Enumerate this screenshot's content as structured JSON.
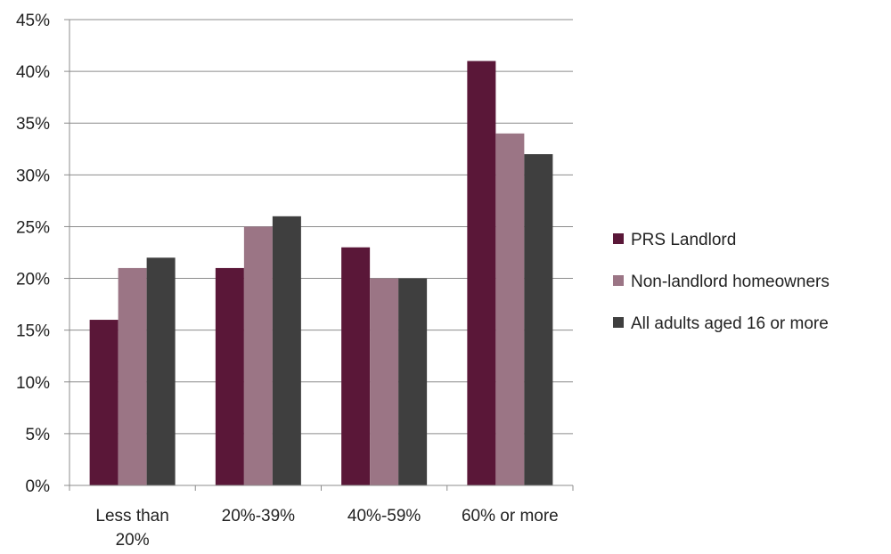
{
  "chart_data": {
    "type": "bar",
    "title": "",
    "xlabel": "",
    "ylabel": "",
    "ylim": [
      0,
      45
    ],
    "y_ticks": [
      "0%",
      "5%",
      "10%",
      "15%",
      "20%",
      "25%",
      "30%",
      "35%",
      "40%",
      "45%"
    ],
    "y_tick_values": [
      0,
      5,
      10,
      15,
      20,
      25,
      30,
      35,
      40,
      45
    ],
    "categories": [
      [
        "Less than",
        "20%"
      ],
      [
        "20%-39%"
      ],
      [
        "40%-59%"
      ],
      [
        "60% or more"
      ]
    ],
    "series": [
      {
        "name": "PRS Landlord",
        "color": "#5a1738",
        "values": [
          16,
          21,
          23,
          41
        ]
      },
      {
        "name": "Non-landlord homeowners",
        "color": "#9b7585",
        "values": [
          21,
          25,
          20,
          34
        ]
      },
      {
        "name": "All adults aged 16 or more",
        "color": "#3f3f3f",
        "values": [
          22,
          26,
          20,
          32
        ]
      }
    ],
    "grid": true,
    "legend_position": "right"
  }
}
